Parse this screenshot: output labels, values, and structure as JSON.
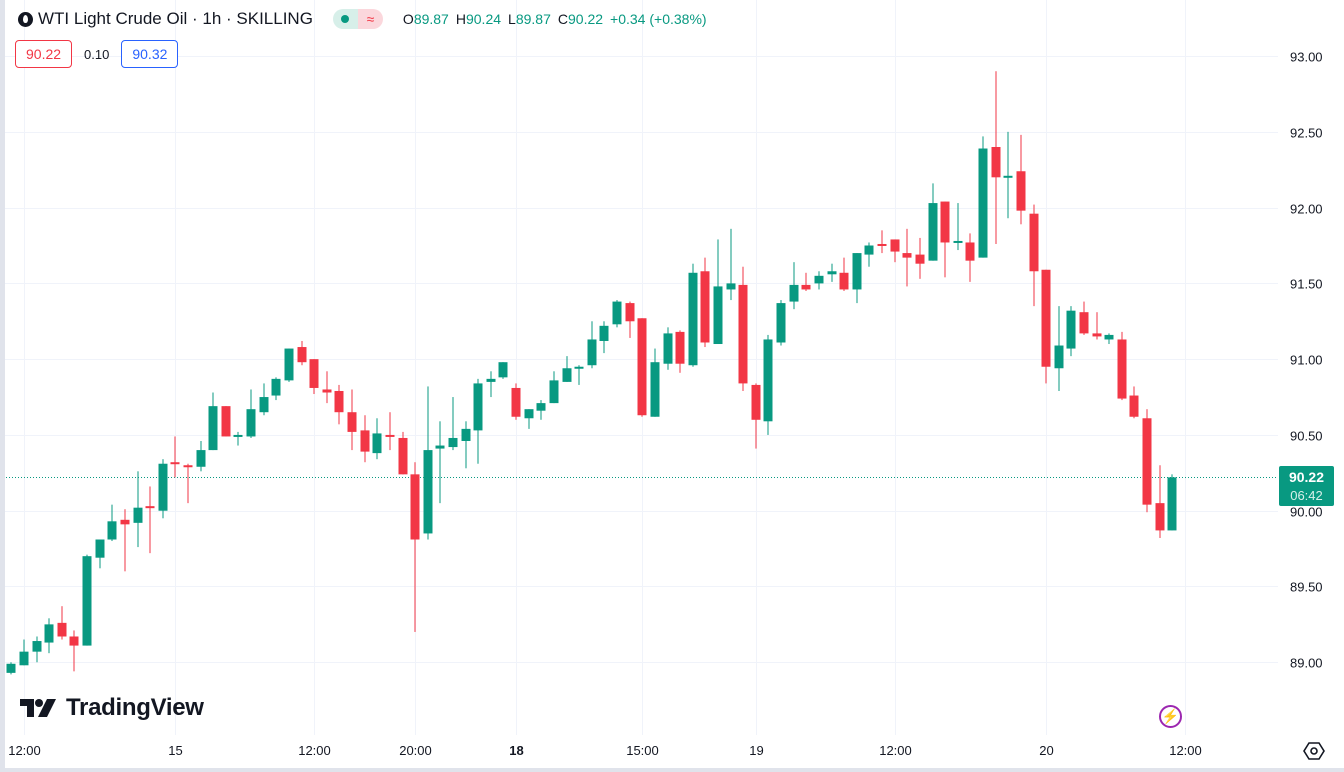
{
  "header": {
    "title": "WTI Light Crude Oil · 1h · SKILLING",
    "pill_right_symbol": "≈",
    "ohlc": {
      "o_label": "O",
      "o": "89.87",
      "h_label": "H",
      "h": "90.24",
      "l_label": "L",
      "l": "89.87",
      "c_label": "C",
      "c": "90.22",
      "change": "+0.34 (+0.38%)"
    },
    "sell_price": "90.22",
    "spread": "0.10",
    "buy_price": "90.32"
  },
  "last_price": {
    "price": "90.22",
    "countdown": "06:42"
  },
  "logo_text": "TradingView",
  "colors": {
    "up": "#089981",
    "down": "#f23645",
    "grid": "#f0f3fa",
    "accent_event": "#9c27b0"
  },
  "chart_data": {
    "type": "candlestick",
    "title": "WTI Light Crude Oil · 1h · SKILLING",
    "ylim": [
      88.52,
      93.37
    ],
    "y_ticks": [
      "89.00",
      "89.50",
      "90.00",
      "90.50",
      "91.00",
      "91.50",
      "92.00",
      "92.50",
      "93.00"
    ],
    "x_ticks": [
      {
        "label": "12:00",
        "bar": 1,
        "bold": false
      },
      {
        "label": "15",
        "bar": 13,
        "bold": false
      },
      {
        "label": "12:00",
        "bar": 24,
        "bold": false
      },
      {
        "label": "20:00",
        "bar": 32,
        "bold": false
      },
      {
        "label": "18",
        "bar": 40,
        "bold": true
      },
      {
        "label": "15:00",
        "bar": 50,
        "bold": false
      },
      {
        "label": "19",
        "bar": 59,
        "bold": false
      },
      {
        "label": "12:00",
        "bar": 70,
        "bold": false
      },
      {
        "label": "20",
        "bar": 82,
        "bold": false
      },
      {
        "label": "12:00",
        "bar": 93,
        "bold": false
      }
    ],
    "current_price": 90.22,
    "ohlc_fields": [
      "open",
      "high",
      "low",
      "close"
    ],
    "ohlc": [
      [
        88.93,
        89.0,
        88.92,
        88.99
      ],
      [
        88.98,
        89.15,
        88.98,
        89.07
      ],
      [
        89.07,
        89.17,
        89.0,
        89.14
      ],
      [
        89.13,
        89.29,
        89.06,
        89.25
      ],
      [
        89.26,
        89.37,
        89.15,
        89.17
      ],
      [
        89.17,
        89.21,
        88.94,
        89.11
      ],
      [
        89.11,
        89.71,
        89.11,
        89.7
      ],
      [
        89.69,
        89.81,
        89.62,
        89.81
      ],
      [
        89.81,
        90.04,
        89.8,
        89.93
      ],
      [
        89.94,
        90.01,
        89.6,
        89.91
      ],
      [
        89.92,
        90.26,
        89.76,
        90.02
      ],
      [
        90.03,
        90.16,
        89.72,
        90.02
      ],
      [
        90.0,
        90.34,
        89.95,
        90.31
      ],
      [
        90.32,
        90.49,
        90.22,
        90.31
      ],
      [
        90.3,
        90.31,
        90.05,
        90.29
      ],
      [
        90.29,
        90.46,
        90.26,
        90.4
      ],
      [
        90.4,
        90.78,
        90.4,
        90.69
      ],
      [
        90.69,
        90.69,
        90.49,
        90.49
      ],
      [
        90.49,
        90.52,
        90.43,
        90.5
      ],
      [
        90.49,
        90.8,
        90.48,
        90.67
      ],
      [
        90.65,
        90.84,
        90.63,
        90.75
      ],
      [
        90.76,
        90.88,
        90.73,
        90.87
      ],
      [
        90.86,
        91.07,
        90.85,
        91.07
      ],
      [
        91.08,
        91.12,
        90.96,
        90.98
      ],
      [
        91.0,
        91.0,
        90.77,
        90.81
      ],
      [
        90.8,
        90.92,
        90.71,
        90.78
      ],
      [
        90.79,
        90.83,
        90.57,
        90.65
      ],
      [
        90.65,
        90.8,
        90.4,
        90.52
      ],
      [
        90.53,
        90.63,
        90.32,
        90.39
      ],
      [
        90.38,
        90.61,
        90.34,
        90.51
      ],
      [
        90.5,
        90.65,
        90.4,
        90.49
      ],
      [
        90.48,
        90.52,
        90.24,
        90.24
      ],
      [
        90.24,
        90.32,
        89.2,
        89.81
      ],
      [
        89.85,
        90.82,
        89.81,
        90.4
      ],
      [
        90.41,
        90.59,
        90.05,
        90.43
      ],
      [
        90.42,
        90.75,
        90.4,
        90.48
      ],
      [
        90.46,
        90.59,
        90.28,
        90.54
      ],
      [
        90.53,
        90.87,
        90.31,
        90.84
      ],
      [
        90.85,
        90.92,
        90.75,
        90.87
      ],
      [
        90.88,
        90.98,
        90.87,
        90.98
      ],
      [
        90.81,
        90.84,
        90.6,
        90.62
      ],
      [
        90.61,
        90.67,
        90.54,
        90.67
      ],
      [
        90.66,
        90.73,
        90.6,
        90.71
      ],
      [
        90.71,
        90.92,
        90.71,
        90.86
      ],
      [
        90.85,
        91.02,
        90.85,
        90.94
      ],
      [
        90.94,
        90.96,
        90.83,
        90.95
      ],
      [
        90.96,
        91.25,
        90.94,
        91.13
      ],
      [
        91.12,
        91.25,
        91.04,
        91.22
      ],
      [
        91.23,
        91.39,
        91.21,
        91.38
      ],
      [
        91.37,
        91.38,
        91.14,
        91.25
      ],
      [
        91.27,
        91.27,
        90.62,
        90.63
      ],
      [
        90.62,
        91.07,
        90.62,
        90.98
      ],
      [
        90.97,
        91.21,
        90.93,
        91.17
      ],
      [
        91.18,
        91.19,
        90.91,
        90.97
      ],
      [
        90.96,
        91.63,
        90.95,
        91.57
      ],
      [
        91.58,
        91.67,
        91.08,
        91.11
      ],
      [
        91.1,
        91.79,
        91.1,
        91.48
      ],
      [
        91.46,
        91.86,
        91.39,
        91.5
      ],
      [
        91.49,
        91.61,
        90.79,
        90.84
      ],
      [
        90.83,
        90.84,
        90.41,
        90.6
      ],
      [
        90.59,
        91.16,
        90.5,
        91.13
      ],
      [
        91.11,
        91.39,
        91.09,
        91.37
      ],
      [
        91.38,
        91.64,
        91.33,
        91.49
      ],
      [
        91.49,
        91.57,
        91.45,
        91.46
      ],
      [
        91.5,
        91.58,
        91.46,
        91.55
      ],
      [
        91.56,
        91.63,
        91.51,
        91.58
      ],
      [
        91.57,
        91.67,
        91.45,
        91.46
      ],
      [
        91.46,
        91.7,
        91.37,
        91.7
      ],
      [
        91.69,
        91.77,
        91.61,
        91.75
      ],
      [
        91.76,
        91.85,
        91.7,
        91.75
      ],
      [
        91.79,
        91.79,
        91.64,
        91.71
      ],
      [
        91.7,
        91.86,
        91.48,
        91.67
      ],
      [
        91.69,
        91.8,
        91.53,
        91.63
      ],
      [
        91.65,
        92.16,
        91.65,
        92.03
      ],
      [
        92.04,
        92.04,
        91.54,
        91.77
      ],
      [
        91.77,
        92.03,
        91.72,
        91.78
      ],
      [
        91.77,
        91.83,
        91.51,
        91.65
      ],
      [
        91.67,
        92.47,
        91.67,
        92.39
      ],
      [
        92.4,
        92.9,
        91.76,
        92.2
      ],
      [
        92.2,
        92.5,
        91.93,
        92.21
      ],
      [
        92.24,
        92.48,
        91.89,
        91.98
      ],
      [
        91.96,
        92.02,
        91.35,
        91.58
      ],
      [
        91.59,
        91.59,
        90.84,
        90.95
      ],
      [
        90.94,
        91.35,
        90.79,
        91.09
      ],
      [
        91.07,
        91.35,
        91.02,
        91.32
      ],
      [
        91.31,
        91.38,
        91.16,
        91.17
      ],
      [
        91.17,
        91.31,
        91.13,
        91.15
      ],
      [
        91.13,
        91.17,
        91.1,
        91.16
      ],
      [
        91.13,
        91.18,
        90.73,
        90.74
      ],
      [
        90.76,
        90.82,
        90.61,
        90.62
      ],
      [
        90.61,
        90.67,
        89.99,
        90.04
      ],
      [
        90.05,
        90.3,
        89.82,
        89.87
      ],
      [
        89.87,
        90.24,
        89.87,
        90.22
      ]
    ]
  }
}
